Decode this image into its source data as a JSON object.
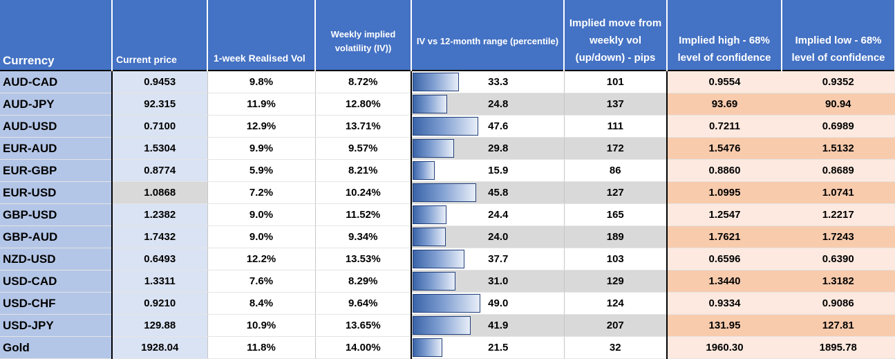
{
  "headers": {
    "currency": "Currency",
    "price": "Current price",
    "realised_vol": "1-week Realised Vol",
    "implied_vol": "Weekly implied volatility (IV))",
    "iv_range": "IV vs  12-month  range (percentile)",
    "implied_move": "Implied move from weekly vol (up/down) - pips",
    "implied_high": "Implied high -  68% level of confidence",
    "implied_low": "Implied low -  68% level of confidence"
  },
  "colors": {
    "header_bg": "#4472c4",
    "currency_bg": "#b4c6e7",
    "price_bg": "#dae3f3",
    "shade_gray": "#d9d9d9",
    "high_low_light": "#fde9df",
    "high_low_dark": "#f8cbad",
    "bar_fill": "#3a64a8"
  },
  "rows": [
    {
      "currency": "AUD-CAD",
      "price": "0.9453",
      "rvol": "9.8%",
      "ivol": "8.72%",
      "pct": "33.3",
      "pct_value": 33.3,
      "move": "101",
      "high": "0.9554",
      "low": "0.9352"
    },
    {
      "currency": "AUD-JPY",
      "price": "92.315",
      "rvol": "11.9%",
      "ivol": "12.80%",
      "pct": "24.8",
      "pct_value": 24.8,
      "move": "137",
      "high": "93.69",
      "low": "90.94"
    },
    {
      "currency": "AUD-USD",
      "price": "0.7100",
      "rvol": "12.9%",
      "ivol": "13.71%",
      "pct": "47.6",
      "pct_value": 47.6,
      "move": "111",
      "high": "0.7211",
      "low": "0.6989"
    },
    {
      "currency": "EUR-AUD",
      "price": "1.5304",
      "rvol": "9.9%",
      "ivol": "9.57%",
      "pct": "29.8",
      "pct_value": 29.8,
      "move": "172",
      "high": "1.5476",
      "low": "1.5132"
    },
    {
      "currency": "EUR-GBP",
      "price": "0.8774",
      "rvol": "5.9%",
      "ivol": "8.21%",
      "pct": "15.9",
      "pct_value": 15.9,
      "move": "86",
      "high": "0.8860",
      "low": "0.8689"
    },
    {
      "currency": "EUR-USD",
      "price": "1.0868",
      "rvol": "7.2%",
      "ivol": "10.24%",
      "pct": "45.8",
      "pct_value": 45.8,
      "move": "127",
      "high": "1.0995",
      "low": "1.0741"
    },
    {
      "currency": "GBP-USD",
      "price": "1.2382",
      "rvol": "9.0%",
      "ivol": "11.52%",
      "pct": "24.4",
      "pct_value": 24.4,
      "move": "165",
      "high": "1.2547",
      "low": "1.2217"
    },
    {
      "currency": "GBP-AUD",
      "price": "1.7432",
      "rvol": "9.0%",
      "ivol": "9.34%",
      "pct": "24.0",
      "pct_value": 24.0,
      "move": "189",
      "high": "1.7621",
      "low": "1.7243"
    },
    {
      "currency": "NZD-USD",
      "price": "0.6493",
      "rvol": "12.2%",
      "ivol": "13.53%",
      "pct": "37.7",
      "pct_value": 37.7,
      "move": "103",
      "high": "0.6596",
      "low": "0.6390"
    },
    {
      "currency": "USD-CAD",
      "price": "1.3311",
      "rvol": "7.6%",
      "ivol": "8.29%",
      "pct": "31.0",
      "pct_value": 31.0,
      "move": "129",
      "high": "1.3440",
      "low": "1.3182"
    },
    {
      "currency": "USD-CHF",
      "price": "0.9210",
      "rvol": "8.4%",
      "ivol": "9.64%",
      "pct": "49.0",
      "pct_value": 49.0,
      "move": "124",
      "high": "0.9334",
      "low": "0.9086"
    },
    {
      "currency": "USD-JPY",
      "price": "129.88",
      "rvol": "10.9%",
      "ivol": "13.65%",
      "pct": "41.9",
      "pct_value": 41.9,
      "move": "207",
      "high": "131.95",
      "low": "127.81"
    },
    {
      "currency": "Gold",
      "price": "1928.04",
      "rvol": "11.8%",
      "ivol": "14.00%",
      "pct": "21.5",
      "pct_value": 21.5,
      "move": "32",
      "high": "1960.30",
      "low": "1895.78"
    }
  ]
}
